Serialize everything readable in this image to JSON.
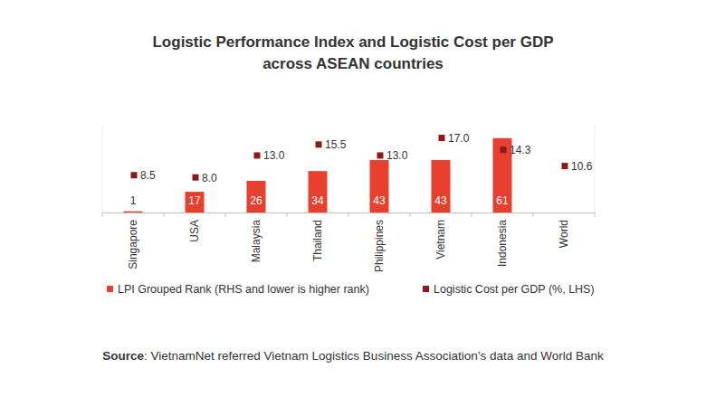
{
  "chart_data": {
    "type": "bar",
    "title": "Logistic Performance Index and Logistic Cost per GDP\nacross ASEAN countries",
    "categories": [
      "Singapore",
      "USA",
      "Malaysia",
      "Thailand",
      "Philippines",
      "Vietnam",
      "Indonesia",
      "World"
    ],
    "series": [
      {
        "name": "LPI Grouped Rank (RHS and lower is higher rank)",
        "type": "bar",
        "color": "#e8402e",
        "axis": "y2",
        "values": [
          1,
          17,
          26,
          34,
          43,
          43,
          61,
          null
        ]
      },
      {
        "name": "Logistic Cost per GDP (%, LHS)",
        "type": "scatter",
        "marker": "square",
        "color": "#8b1a1a",
        "values": [
          8.5,
          8.0,
          13.0,
          15.5,
          13.0,
          17.0,
          14.3,
          10.6
        ],
        "value_labels": [
          "8.5",
          "8.0",
          "13.0",
          "15.5",
          "13.0",
          "17.0",
          "14.3",
          "10.6"
        ]
      }
    ],
    "ylim": [
      0,
      20
    ],
    "y2lim": [
      0,
      72
    ],
    "data_labels": true,
    "tick_labels": "x",
    "grid": false,
    "legend": "bottom",
    "source": "Source: VietnamNet referred Vietnam Logistics Business Association’s data and World Bank"
  }
}
